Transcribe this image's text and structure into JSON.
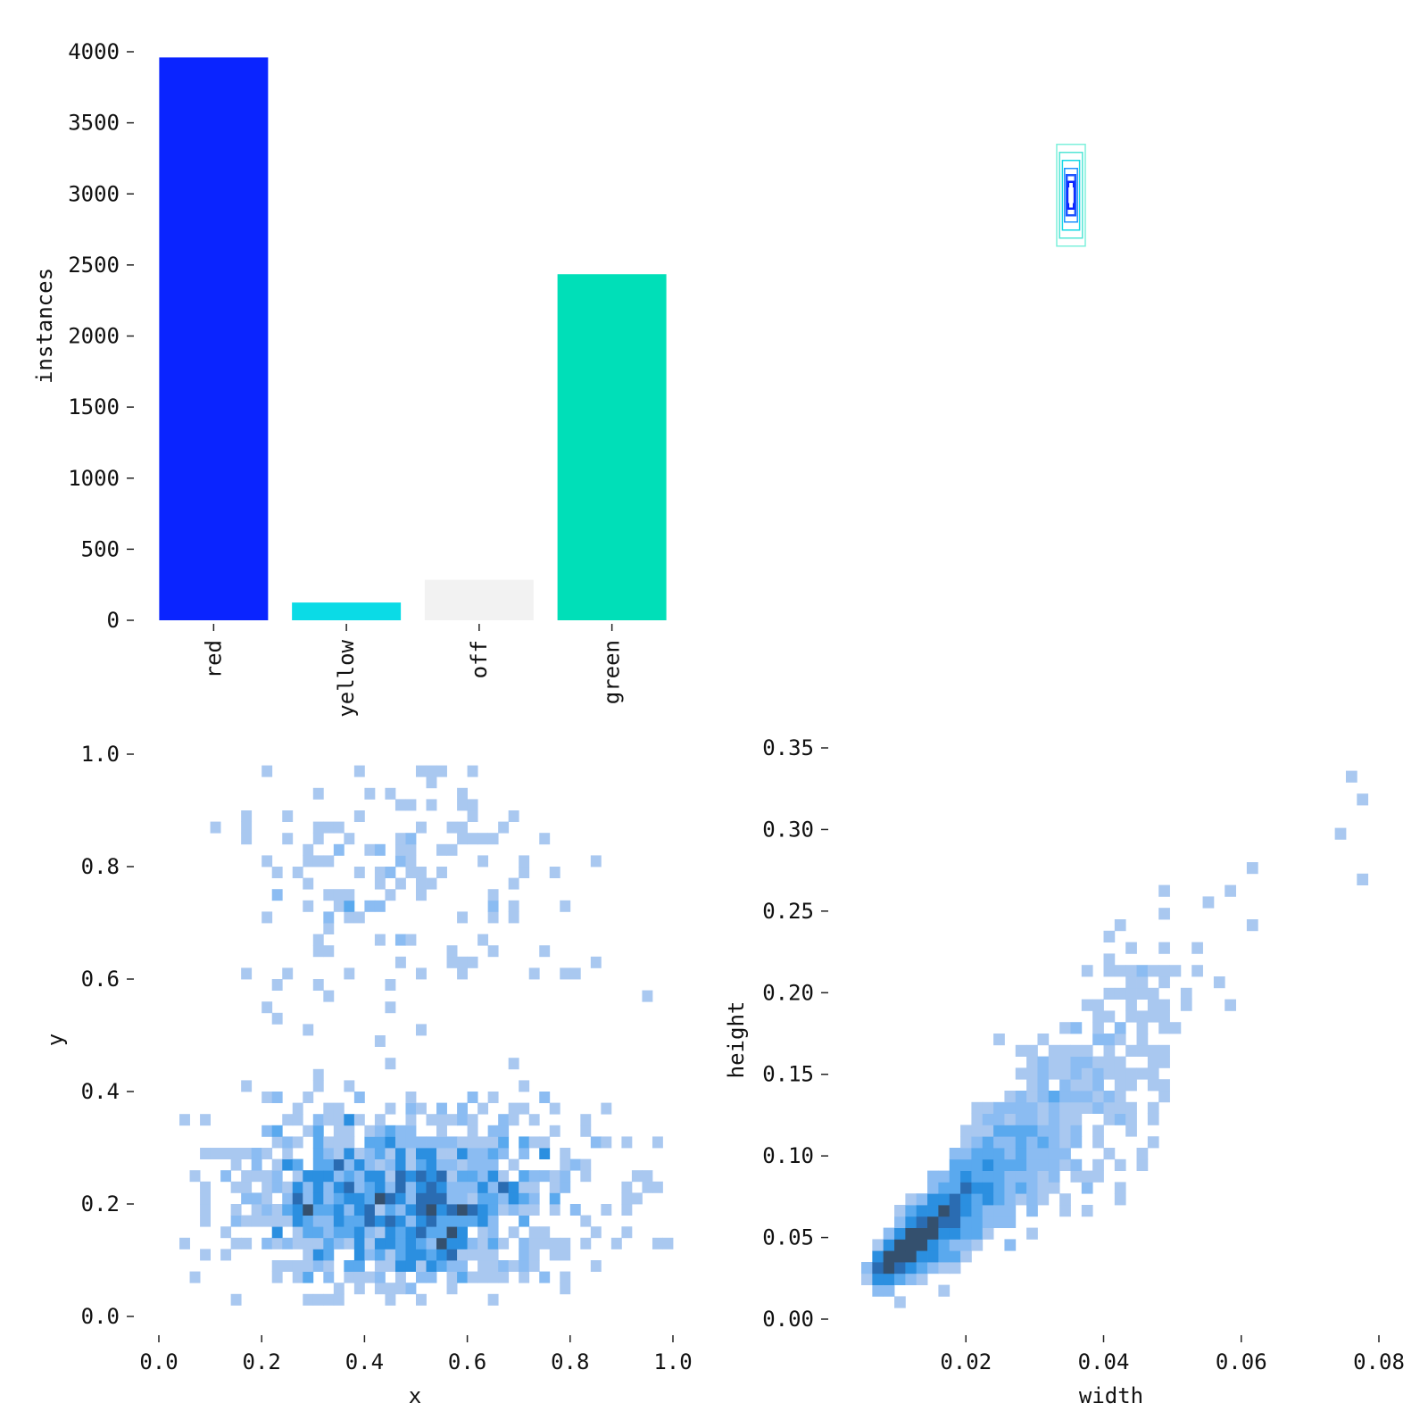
{
  "chart_data": [
    {
      "type": "bar",
      "categories": [
        "red",
        "yellow",
        "off",
        "green"
      ],
      "values": [
        3960,
        125,
        285,
        2435
      ],
      "colors": [
        "#0a24ff",
        "#0bdbe6",
        "#f2f2f2",
        "#00dfb8"
      ],
      "ylabel": "instances",
      "ylim": [
        0,
        4000
      ],
      "yticks": [
        "0",
        "500",
        "1000",
        "1500",
        "2000",
        "2500",
        "3000",
        "3500",
        "4000"
      ]
    },
    {
      "type": "scatter",
      "description_free": true,
      "shape": "nested-rectangles",
      "x_center": 0.5,
      "y_center": 0.5,
      "boxes": [
        {
          "w": 0.04,
          "h": 0.19,
          "color": "#7ef0dc"
        },
        {
          "w": 0.032,
          "h": 0.16,
          "color": "#52e6d6"
        },
        {
          "w": 0.024,
          "h": 0.13,
          "color": "#14d8e6"
        },
        {
          "w": 0.018,
          "h": 0.1,
          "color": "#1e90ff"
        },
        {
          "w": 0.012,
          "h": 0.075,
          "color": "#1f55ff"
        },
        {
          "w": 0.008,
          "h": 0.05,
          "color": "#0a24ff"
        },
        {
          "w": 0.004,
          "h": 0.025,
          "color": "#ffffff"
        }
      ]
    },
    {
      "type": "heatmap",
      "xlabel": "x",
      "ylabel": "y",
      "xlim": [
        0,
        1
      ],
      "ylim": [
        0,
        1
      ],
      "xticks": [
        "0.0",
        "0.2",
        "0.4",
        "0.6",
        "0.8",
        "1.0"
      ],
      "yticks": [
        "0.0",
        "0.2",
        "0.4",
        "0.6",
        "0.8",
        "1.0"
      ],
      "bins": 50,
      "clusters": [
        {
          "cx": 0.52,
          "cy": 0.22,
          "sx": 0.17,
          "sy": 0.08,
          "n": 620
        },
        {
          "cx": 0.35,
          "cy": 0.2,
          "sx": 0.12,
          "sy": 0.07,
          "n": 300
        },
        {
          "cx": 0.55,
          "cy": 0.15,
          "sx": 0.07,
          "sy": 0.06,
          "n": 160
        },
        {
          "cx": 0.45,
          "cy": 0.82,
          "sx": 0.15,
          "sy": 0.09,
          "n": 110
        },
        {
          "cx": 0.45,
          "cy": 0.66,
          "sx": 0.2,
          "sy": 0.07,
          "n": 30
        },
        {
          "cx": 0.5,
          "cy": 0.5,
          "sx": 0.3,
          "sy": 0.1,
          "n": 12
        }
      ]
    },
    {
      "type": "heatmap",
      "xlabel": "width",
      "ylabel": "height",
      "xlim": [
        0,
        0.08
      ],
      "ylim": [
        0,
        0.35
      ],
      "xticks": [
        "0.02",
        "0.04",
        "0.06",
        "0.08"
      ],
      "yticks": [
        "0.00",
        "0.05",
        "0.10",
        "0.15",
        "0.20",
        "0.25",
        "0.30",
        "0.35"
      ],
      "bins": 50,
      "trend": {
        "slope": 4.4,
        "intercept": 0.0,
        "wmin": 0.004,
        "wmax": 0.078
      },
      "outliers": [
        [
          0.076,
          0.335
        ],
        [
          0.078,
          0.315
        ],
        [
          0.074,
          0.295
        ],
        [
          0.078,
          0.27
        ],
        [
          0.061,
          0.275
        ],
        [
          0.058,
          0.265
        ],
        [
          0.055,
          0.255
        ],
        [
          0.061,
          0.24
        ],
        [
          0.054,
          0.23
        ],
        [
          0.053,
          0.215
        ],
        [
          0.056,
          0.205
        ],
        [
          0.058,
          0.195
        ],
        [
          0.052,
          0.19
        ],
        [
          0.042,
          0.215
        ],
        [
          0.043,
          0.2
        ],
        [
          0.044,
          0.185
        ],
        [
          0.045,
          0.165
        ],
        [
          0.039,
          0.18
        ],
        [
          0.036,
          0.175
        ]
      ]
    }
  ]
}
